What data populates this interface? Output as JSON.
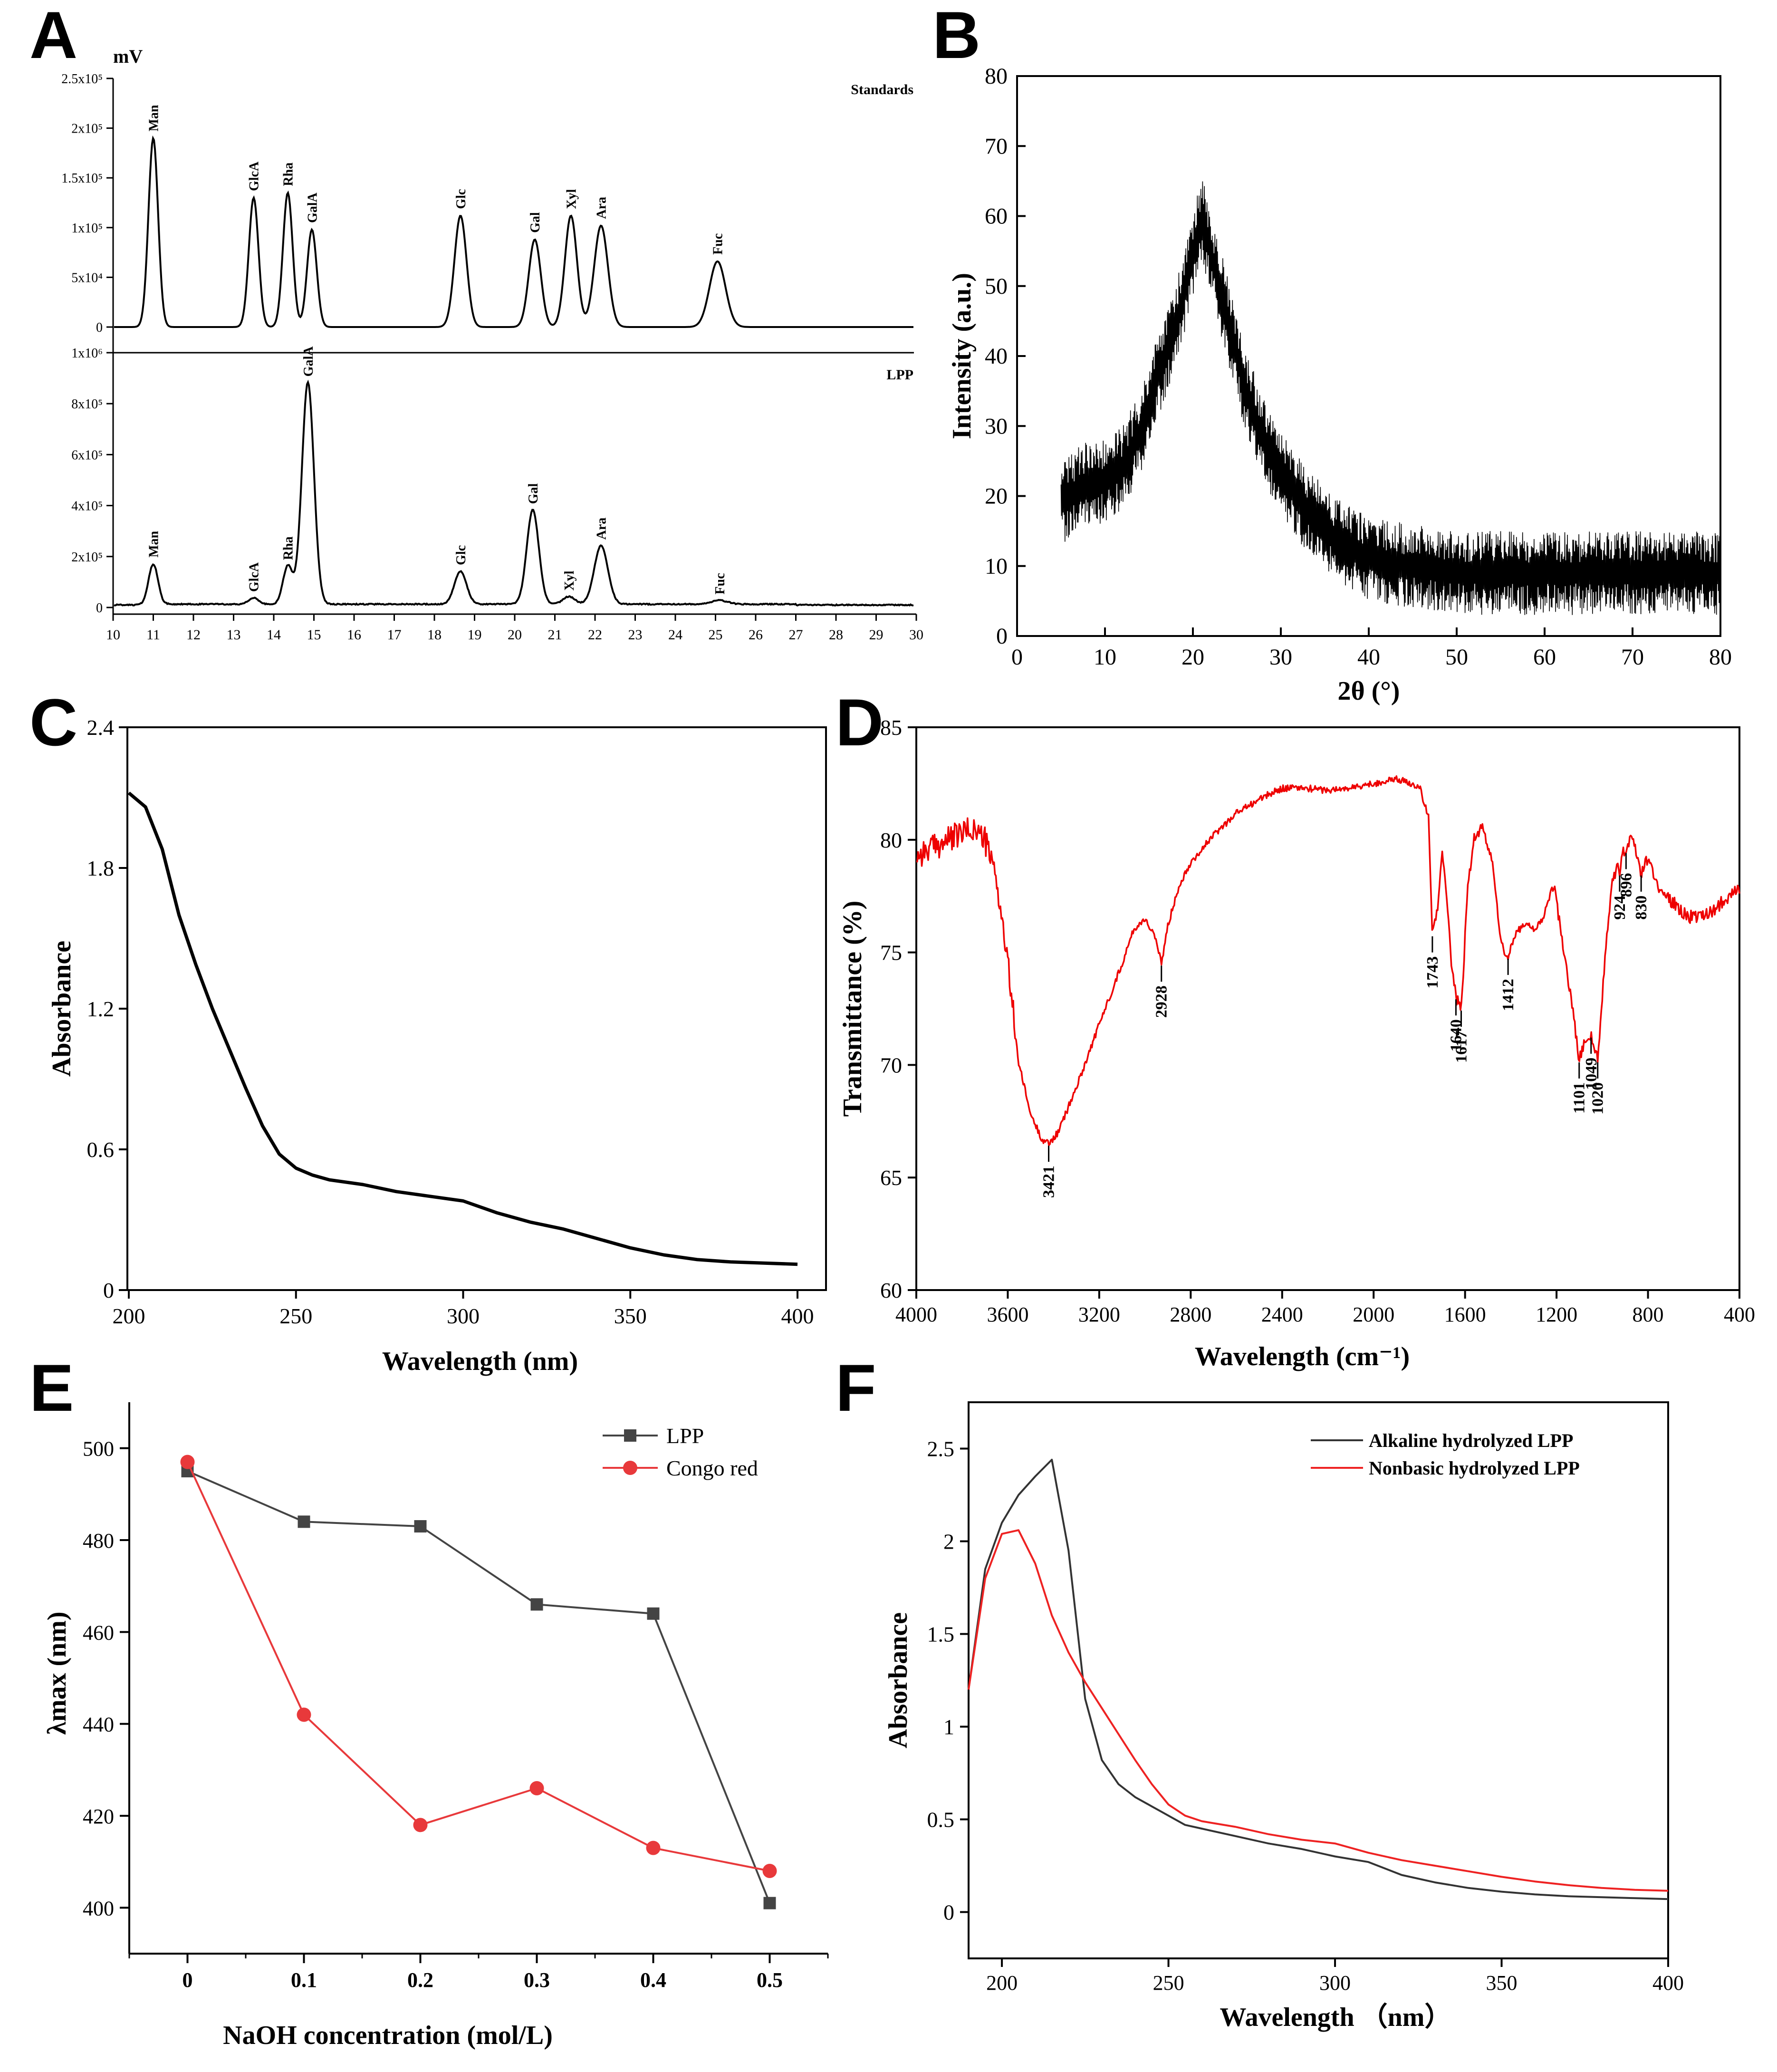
{
  "chart_data": [
    {
      "panel": "A",
      "type": "line",
      "unit_label": "mV",
      "x": {
        "min": 10,
        "max": 30,
        "ticks": [
          10,
          11,
          12,
          13,
          14,
          15,
          16,
          17,
          18,
          19,
          20,
          21,
          22,
          23,
          24,
          25,
          26,
          27,
          28,
          29,
          30
        ]
      },
      "subplots": [
        {
          "name": "Standards",
          "ylim": [
            0,
            250000
          ],
          "ytick_values": [
            0,
            50000,
            100000,
            150000,
            200000,
            250000
          ],
          "ytick_labels": [
            "0",
            "5x10⁴",
            "1x10⁵",
            "1.5x10⁵",
            "2x10⁵",
            "2.5x10⁵"
          ],
          "peaks": [
            {
              "label": "Man",
              "x": 11.0,
              "y": 190000,
              "w": 0.12
            },
            {
              "label": "GlcA",
              "x": 13.5,
              "y": 130000,
              "w": 0.12
            },
            {
              "label": "Rha",
              "x": 14.35,
              "y": 135000,
              "w": 0.12
            },
            {
              "label": "GalA",
              "x": 14.95,
              "y": 98000,
              "w": 0.12
            },
            {
              "label": "Glc",
              "x": 18.65,
              "y": 112000,
              "w": 0.15
            },
            {
              "label": "Gal",
              "x": 20.5,
              "y": 88000,
              "w": 0.15
            },
            {
              "label": "Xyl",
              "x": 21.4,
              "y": 112000,
              "w": 0.15
            },
            {
              "label": "Ara",
              "x": 22.15,
              "y": 102000,
              "w": 0.17
            },
            {
              "label": "Fuc",
              "x": 25.05,
              "y": 66000,
              "w": 0.2
            }
          ]
        },
        {
          "name": "LPP",
          "ylim": [
            0,
            1000000
          ],
          "ytick_values": [
            0,
            200000,
            400000,
            600000,
            800000,
            1000000
          ],
          "ytick_labels": [
            "0",
            "2x10⁵",
            "4x10⁵",
            "6x10⁵",
            "8x10⁵",
            "1x10⁶"
          ],
          "baseline": 10000,
          "peaks": [
            {
              "label": "Man",
              "x": 11.0,
              "y": 160000,
              "w": 0.12
            },
            {
              "label": "GlcA",
              "x": 13.5,
              "y": 25000,
              "w": 0.12
            },
            {
              "label": "Rha",
              "x": 14.35,
              "y": 150000,
              "w": 0.12
            },
            {
              "label": "GalA",
              "x": 14.85,
              "y": 870000,
              "w": 0.15
            },
            {
              "label": "Glc",
              "x": 18.65,
              "y": 130000,
              "w": 0.15
            },
            {
              "label": "Gal",
              "x": 20.45,
              "y": 370000,
              "w": 0.15
            },
            {
              "label": "Xyl",
              "x": 21.35,
              "y": 30000,
              "w": 0.15
            },
            {
              "label": "Ara",
              "x": 22.15,
              "y": 230000,
              "w": 0.17
            },
            {
              "label": "Fuc",
              "x": 25.1,
              "y": 15000,
              "w": 0.2
            }
          ]
        }
      ]
    },
    {
      "panel": "B",
      "type": "line",
      "xlabel": "2θ (°)",
      "ylabel": "Intensity (a.u.)",
      "xlim": [
        0,
        80
      ],
      "ylim": [
        0,
        80
      ],
      "xticks": [
        0,
        10,
        20,
        30,
        40,
        50,
        60,
        70,
        80
      ],
      "yticks": [
        0,
        10,
        20,
        30,
        40,
        50,
        60,
        70,
        80
      ],
      "x": [
        5,
        8,
        10,
        12,
        14,
        16,
        18,
        20,
        21,
        22,
        24,
        26,
        28,
        30,
        33,
        36,
        40,
        45,
        50,
        55,
        60,
        65,
        70,
        75,
        80
      ],
      "y": [
        19,
        22,
        22,
        24,
        29,
        37,
        44,
        54,
        60,
        55,
        45,
        35,
        28,
        23,
        18,
        14,
        11,
        10,
        9,
        9,
        9,
        9,
        9,
        9,
        9
      ],
      "noise_amplitude": 5
    },
    {
      "panel": "C",
      "type": "line",
      "xlabel": "Wavelength (nm)",
      "ylabel": "Absorbance",
      "xlim": [
        200,
        400
      ],
      "ylim": [
        0,
        2.4
      ],
      "xticks": [
        200,
        250,
        300,
        350,
        400
      ],
      "yticks": [
        0,
        0.6,
        1.2,
        1.8,
        2.4
      ],
      "ytick_labels": [
        "0",
        "0.6",
        "1.2",
        "1.8",
        "2.4"
      ],
      "x": [
        200,
        205,
        210,
        215,
        220,
        225,
        230,
        235,
        240,
        245,
        250,
        255,
        260,
        270,
        280,
        290,
        300,
        310,
        320,
        330,
        340,
        350,
        360,
        370,
        380,
        390,
        400
      ],
      "y": [
        2.12,
        2.06,
        1.88,
        1.6,
        1.39,
        1.2,
        1.03,
        0.86,
        0.7,
        0.58,
        0.52,
        0.49,
        0.47,
        0.45,
        0.42,
        0.4,
        0.38,
        0.33,
        0.29,
        0.26,
        0.22,
        0.18,
        0.15,
        0.13,
        0.12,
        0.115,
        0.11
      ]
    },
    {
      "panel": "D",
      "type": "line",
      "color": "#ee0000",
      "xlabel": "Wavelength (cm⁻¹)",
      "ylabel": "Transmittance (%)",
      "xlim": [
        4000,
        400
      ],
      "ylim": [
        60,
        85
      ],
      "xticks": [
        4000,
        3600,
        3200,
        2800,
        2400,
        2000,
        1600,
        1200,
        800,
        400
      ],
      "yticks": [
        60,
        65,
        70,
        75,
        80,
        85
      ],
      "x": [
        4000,
        3900,
        3800,
        3750,
        3700,
        3650,
        3600,
        3550,
        3500,
        3450,
        3421,
        3380,
        3300,
        3200,
        3100,
        3050,
        3000,
        2960,
        2928,
        2900,
        2850,
        2800,
        2700,
        2600,
        2500,
        2400,
        2300,
        2200,
        2100,
        2000,
        1900,
        1800,
        1760,
        1743,
        1720,
        1700,
        1680,
        1660,
        1640,
        1617,
        1590,
        1560,
        1520,
        1480,
        1450,
        1430,
        1412,
        1380,
        1340,
        1300,
        1260,
        1230,
        1210,
        1190,
        1160,
        1130,
        1101,
        1080,
        1049,
        1020,
        990,
        960,
        930,
        924,
        910,
        896,
        870,
        830,
        800,
        760,
        700,
        650,
        600,
        550,
        500,
        450,
        400
      ],
      "y": [
        79.3,
        79.8,
        80.3,
        80.5,
        80.0,
        78.3,
        74.5,
        70.0,
        67.8,
        66.7,
        66.5,
        67.0,
        69.0,
        71.8,
        74.5,
        76.0,
        76.5,
        75.8,
        74.5,
        76.2,
        78.0,
        79.0,
        80.2,
        81.2,
        81.8,
        82.3,
        82.3,
        82.2,
        82.3,
        82.5,
        82.7,
        82.4,
        81.0,
        75.8,
        77.0,
        79.5,
        77.5,
        74.5,
        73.0,
        72.5,
        77.5,
        80.2,
        80.4,
        79.0,
        76.0,
        75.0,
        74.8,
        75.8,
        76.3,
        76.0,
        76.5,
        77.5,
        78.0,
        76.5,
        74.5,
        72.5,
        70.2,
        71.0,
        71.3,
        70.2,
        74.5,
        78.0,
        79.0,
        78.5,
        79.5,
        79.5,
        80.3,
        78.5,
        79.2,
        78.0,
        77.3,
        76.8,
        76.5,
        76.7,
        77.0,
        77.5,
        77.8
      ],
      "annotations": [
        {
          "label": "3421",
          "x": 3421,
          "y": 66.5
        },
        {
          "label": "2928",
          "x": 2928,
          "y": 74.5
        },
        {
          "label": "1743",
          "x": 1743,
          "y": 75.8
        },
        {
          "label": "1640",
          "x": 1640,
          "y": 73.0
        },
        {
          "label": "1617",
          "x": 1617,
          "y": 72.5
        },
        {
          "label": "1412",
          "x": 1412,
          "y": 74.8
        },
        {
          "label": "1101",
          "x": 1101,
          "y": 70.2
        },
        {
          "label": "1049",
          "x": 1049,
          "y": 71.3
        },
        {
          "label": "1020",
          "x": 1020,
          "y": 70.2
        },
        {
          "label": "924",
          "x": 924,
          "y": 78.5
        },
        {
          "label": "896",
          "x": 896,
          "y": 79.5
        },
        {
          "label": "830",
          "x": 830,
          "y": 78.5
        }
      ]
    },
    {
      "panel": "E",
      "type": "line",
      "xlabel": "NaOH concentration (mol/L)",
      "ylabel": "λmax (nm)",
      "xlim": [
        -0.05,
        0.55
      ],
      "ylim": [
        390,
        510
      ],
      "xticks": [
        0,
        0.1,
        0.2,
        0.3,
        0.4,
        0.5
      ],
      "xtick_labels": [
        "0",
        "0.1",
        "0.2",
        "0.3",
        "0.4",
        "0.5"
      ],
      "yticks": [
        400,
        420,
        440,
        460,
        480,
        500
      ],
      "categories": [
        0,
        0.1,
        0.2,
        0.3,
        0.4,
        0.5
      ],
      "legend": "top-right",
      "series": [
        {
          "name": "LPP",
          "color": "#444444",
          "marker": "square",
          "values": [
            495,
            484,
            483,
            466,
            464,
            401
          ]
        },
        {
          "name": "Congo red",
          "color": "#e8393b",
          "marker": "circle",
          "values": [
            497,
            442,
            418,
            426,
            413,
            408
          ]
        }
      ]
    },
    {
      "panel": "F",
      "type": "line",
      "xlabel": "Wavelength （nm）",
      "ylabel": "Absorbance",
      "xlim": [
        190,
        400
      ],
      "ylim": [
        -0.25,
        2.75
      ],
      "xticks": [
        200,
        250,
        300,
        350,
        400
      ],
      "yticks": [
        0,
        0.5,
        1,
        1.5,
        2,
        2.5
      ],
      "ytick_labels": [
        "0",
        "0.5",
        "1",
        "1.5",
        "2",
        "2.5"
      ],
      "legend": "top-right",
      "series": [
        {
          "name": "Alkaline hydrolyzed LPP",
          "color": "#333333",
          "x": [
            190,
            195,
            200,
            205,
            210,
            215,
            220,
            225,
            230,
            235,
            240,
            245,
            250,
            255,
            260,
            270,
            280,
            290,
            300,
            310,
            320,
            330,
            340,
            350,
            360,
            370,
            380,
            390,
            400
          ],
          "y": [
            1.2,
            1.85,
            2.1,
            2.25,
            2.35,
            2.44,
            1.95,
            1.15,
            0.82,
            0.69,
            0.62,
            0.57,
            0.52,
            0.47,
            0.45,
            0.41,
            0.37,
            0.34,
            0.3,
            0.27,
            0.2,
            0.16,
            0.13,
            0.11,
            0.095,
            0.085,
            0.08,
            0.075,
            0.07
          ]
        },
        {
          "name": "Nonbasic hydrolyzed LPP",
          "color": "#ee2222",
          "x": [
            190,
            195,
            200,
            205,
            210,
            215,
            220,
            225,
            230,
            235,
            240,
            245,
            250,
            255,
            260,
            270,
            280,
            290,
            300,
            310,
            320,
            330,
            340,
            350,
            360,
            370,
            380,
            390,
            400
          ],
          "y": [
            1.2,
            1.8,
            2.04,
            2.06,
            1.88,
            1.6,
            1.4,
            1.24,
            1.1,
            0.96,
            0.82,
            0.69,
            0.58,
            0.52,
            0.49,
            0.46,
            0.42,
            0.39,
            0.37,
            0.32,
            0.28,
            0.25,
            0.22,
            0.19,
            0.165,
            0.145,
            0.13,
            0.12,
            0.115
          ]
        }
      ]
    }
  ],
  "panels": {
    "A": {
      "letter": "A",
      "unit": "mV",
      "top_name": "Standards",
      "bottom_name": "LPP"
    },
    "B": {
      "letter": "B"
    },
    "C": {
      "letter": "C"
    },
    "D": {
      "letter": "D"
    },
    "E": {
      "letter": "E"
    },
    "F": {
      "letter": "F"
    }
  }
}
